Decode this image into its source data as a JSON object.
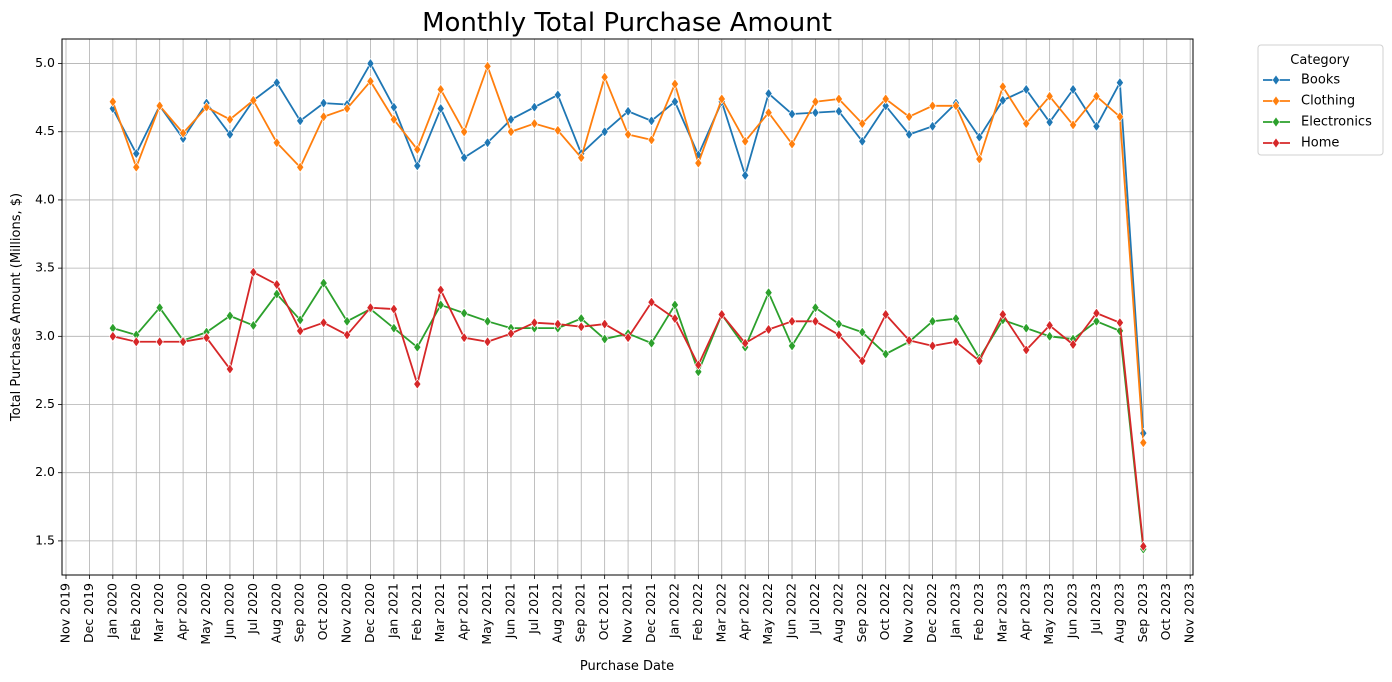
{
  "chart_data": {
    "type": "line",
    "title": "Monthly Total Purchase Amount",
    "xlabel": "Purchase Date",
    "ylabel": "Total Purchase Amount (Millions, $)",
    "ylim": [
      1.25,
      5.18
    ],
    "yticks": [
      "1.5",
      "2.0",
      "2.5",
      "3.0",
      "3.5",
      "4.0",
      "4.5",
      "5.0"
    ],
    "ytick_values": [
      1.5,
      2.0,
      2.5,
      3.0,
      3.5,
      4.0,
      4.5,
      5.0
    ],
    "xticks": [
      "Nov 2019",
      "Dec 2019",
      "Jan 2020",
      "Feb 2020",
      "Mar 2020",
      "Apr 2020",
      "May 2020",
      "Jun 2020",
      "Jul 2020",
      "Aug 2020",
      "Sep 2020",
      "Oct 2020",
      "Nov 2020",
      "Dec 2020",
      "Jan 2021",
      "Feb 2021",
      "Mar 2021",
      "Apr 2021",
      "May 2021",
      "Jun 2021",
      "Jul 2021",
      "Aug 2021",
      "Sep 2021",
      "Oct 2021",
      "Nov 2021",
      "Dec 2021",
      "Jan 2022",
      "Feb 2022",
      "Mar 2022",
      "Apr 2022",
      "May 2022",
      "Jun 2022",
      "Jul 2022",
      "Aug 2022",
      "Sep 2022",
      "Oct 2022",
      "Nov 2022",
      "Dec 2022",
      "Jan 2023",
      "Feb 2023",
      "Mar 2023",
      "Apr 2023",
      "May 2023",
      "Jun 2023",
      "Jul 2023",
      "Aug 2023",
      "Sep 2023",
      "Oct 2023",
      "Nov 2023"
    ],
    "x": [
      "Jan 2020",
      "Feb 2020",
      "Mar 2020",
      "Apr 2020",
      "May 2020",
      "Jun 2020",
      "Jul 2020",
      "Aug 2020",
      "Sep 2020",
      "Oct 2020",
      "Nov 2020",
      "Dec 2020",
      "Jan 2021",
      "Feb 2021",
      "Mar 2021",
      "Apr 2021",
      "May 2021",
      "Jun 2021",
      "Jul 2021",
      "Aug 2021",
      "Sep 2021",
      "Oct 2021",
      "Nov 2021",
      "Dec 2021",
      "Jan 2022",
      "Feb 2022",
      "Mar 2022",
      "Apr 2022",
      "May 2022",
      "Jun 2022",
      "Jul 2022",
      "Aug 2022",
      "Sep 2022",
      "Oct 2022",
      "Nov 2022",
      "Dec 2022",
      "Jan 2023",
      "Feb 2023",
      "Mar 2023",
      "Apr 2023",
      "May 2023",
      "Jun 2023",
      "Jul 2023",
      "Aug 2023",
      "Sep 2023"
    ],
    "series": [
      {
        "name": "Books",
        "color": "#1f77b4",
        "values": [
          4.67,
          4.34,
          4.69,
          4.45,
          4.71,
          4.48,
          4.73,
          4.86,
          4.58,
          4.71,
          4.7,
          5.0,
          4.68,
          4.25,
          4.67,
          4.31,
          4.42,
          4.59,
          4.68,
          4.77,
          4.34,
          4.5,
          4.65,
          4.58,
          4.72,
          4.33,
          4.72,
          4.18,
          4.78,
          4.63,
          4.64,
          4.65,
          4.43,
          4.69,
          4.48,
          4.54,
          4.71,
          4.46,
          4.73,
          4.81,
          4.57,
          4.81,
          4.54,
          4.86,
          2.29
        ]
      },
      {
        "name": "Clothing",
        "color": "#ff7f0e",
        "values": [
          4.72,
          4.24,
          4.69,
          4.49,
          4.68,
          4.59,
          4.73,
          4.42,
          4.24,
          4.61,
          4.67,
          4.87,
          4.59,
          4.37,
          4.81,
          4.5,
          4.98,
          4.5,
          4.56,
          4.51,
          4.31,
          4.9,
          4.48,
          4.44,
          4.85,
          4.27,
          4.74,
          4.43,
          4.64,
          4.41,
          4.72,
          4.74,
          4.56,
          4.74,
          4.61,
          4.69,
          4.69,
          4.3,
          4.83,
          4.56,
          4.76,
          4.55,
          4.76,
          4.61,
          2.22
        ]
      },
      {
        "name": "Electronics",
        "color": "#2ca02c",
        "values": [
          3.06,
          3.01,
          3.21,
          2.97,
          3.03,
          3.15,
          3.08,
          3.31,
          3.12,
          3.39,
          3.11,
          3.2,
          3.06,
          2.92,
          3.23,
          3.17,
          3.11,
          3.06,
          3.06,
          3.06,
          3.13,
          2.98,
          3.02,
          2.95,
          3.23,
          2.74,
          3.16,
          2.92,
          3.32,
          2.93,
          3.21,
          3.09,
          3.03,
          2.87,
          2.96,
          3.11,
          3.13,
          2.84,
          3.12,
          3.06,
          3.0,
          2.98,
          3.11,
          3.04,
          1.44
        ]
      },
      {
        "name": "Home",
        "color": "#d62728",
        "values": [
          3.0,
          2.96,
          2.96,
          2.96,
          2.99,
          2.76,
          3.47,
          3.38,
          3.04,
          3.1,
          3.01,
          3.21,
          3.2,
          2.65,
          3.34,
          2.99,
          2.96,
          3.02,
          3.1,
          3.09,
          3.07,
          3.09,
          2.99,
          3.25,
          3.13,
          2.79,
          3.16,
          2.95,
          3.05,
          3.11,
          3.11,
          3.01,
          2.82,
          3.16,
          2.97,
          2.93,
          2.96,
          2.82,
          3.16,
          2.9,
          3.08,
          2.94,
          3.17,
          3.1,
          1.46
        ]
      }
    ],
    "legend": {
      "title": "Category",
      "placement": "outside top-right"
    },
    "grid": true
  }
}
